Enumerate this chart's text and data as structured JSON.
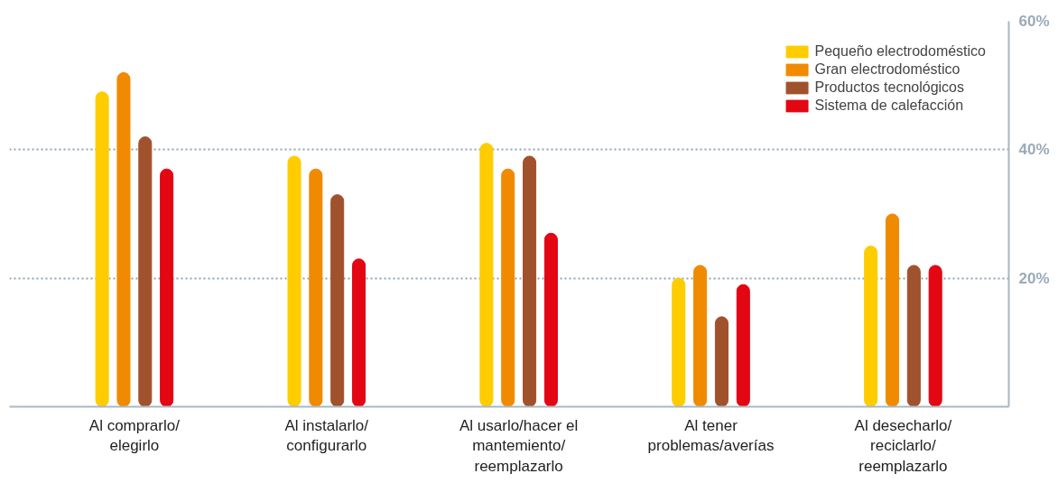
{
  "chart_data": {
    "type": "bar",
    "categories": [
      "Al comprarlo/\nelegirlo",
      "Al instalarlo/\nconfigurarlo",
      "Al usarlo/hacer el\nmantemiento/\nreemplazarlo",
      "Al tener\nproblemas/averías",
      "Al desecharlo/\nreciclarlo/\nreemplazarlo"
    ],
    "series": [
      {
        "name": "Pequeño electrodoméstico",
        "color": "#ffcc00",
        "values": [
          49,
          39,
          41,
          20,
          25
        ]
      },
      {
        "name": "Gran electrodoméstico",
        "color": "#f08a00",
        "values": [
          52,
          37,
          37,
          22,
          30
        ]
      },
      {
        "name": "Productos tecnológicos",
        "color": "#a0522d",
        "values": [
          42,
          33,
          39,
          14,
          22
        ]
      },
      {
        "name": "Sistema de calefacción",
        "color": "#e30613",
        "values": [
          37,
          23,
          27,
          19,
          22
        ]
      }
    ],
    "ylim": [
      0,
      60
    ],
    "yticks": [
      {
        "value": 20,
        "label": "20%"
      },
      {
        "value": 40,
        "label": "40%"
      },
      {
        "value": 60,
        "label": "60%"
      }
    ],
    "grid": "y",
    "legend": "top right"
  }
}
